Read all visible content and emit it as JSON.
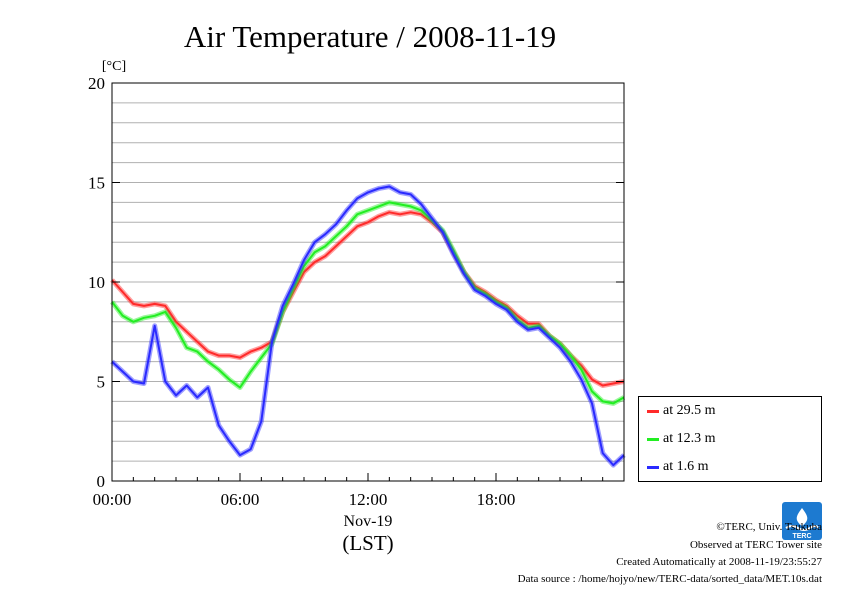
{
  "colors": {
    "s29": "#ff2a2a",
    "s12": "#22ee22",
    "s16": "#2a2aff",
    "grid": "#b0b0b0",
    "logo": "#1d7ad0"
  },
  "chart_data": {
    "type": "line",
    "title": "Air Temperature / 2008-11-19",
    "ylabel": "[°C]",
    "xlabel_date": "Nov-19",
    "xlabel_tz": "(LST)",
    "xlim": [
      0,
      24
    ],
    "ylim": [
      0,
      20
    ],
    "x_ticks": [
      0,
      6,
      12,
      18
    ],
    "x_tick_labels": [
      "00:00",
      "06:00",
      "12:00",
      "18:00"
    ],
    "y_ticks": [
      0,
      5,
      10,
      15,
      20
    ],
    "y_tick_labels": [
      "0",
      "5",
      "10",
      "15",
      "20"
    ],
    "grid": true,
    "legend_position": "bottom-right outside",
    "x_unit": "hour",
    "x": [
      0,
      0.5,
      1,
      1.5,
      2,
      2.5,
      3,
      3.5,
      4,
      4.5,
      5,
      5.5,
      6,
      6.5,
      7,
      7.5,
      8,
      8.5,
      9,
      9.5,
      10,
      10.5,
      11,
      11.5,
      12,
      12.5,
      13,
      13.5,
      14,
      14.5,
      15,
      15.5,
      16,
      16.5,
      17,
      17.5,
      18,
      18.5,
      19,
      19.5,
      20,
      20.5,
      21,
      21.5,
      22,
      22.5,
      23,
      23.5,
      24
    ],
    "series": [
      {
        "name": "at 29.5 m",
        "color_key": "s29",
        "values": [
          10.1,
          9.5,
          8.9,
          8.8,
          8.9,
          8.8,
          8.0,
          7.5,
          7.0,
          6.5,
          6.3,
          6.3,
          6.2,
          6.5,
          6.7,
          7.0,
          8.5,
          9.5,
          10.5,
          11.0,
          11.3,
          11.8,
          12.3,
          12.8,
          13.0,
          13.3,
          13.5,
          13.4,
          13.5,
          13.4,
          13.0,
          12.5,
          11.5,
          10.5,
          9.8,
          9.5,
          9.1,
          8.8,
          8.3,
          7.9,
          7.9,
          7.3,
          6.9,
          6.3,
          5.8,
          5.1,
          4.8,
          4.9,
          5.0
        ]
      },
      {
        "name": "at 12.3 m",
        "color_key": "s12",
        "values": [
          9.0,
          8.3,
          8.0,
          8.2,
          8.3,
          8.5,
          7.7,
          6.7,
          6.5,
          6.0,
          5.6,
          5.1,
          4.7,
          5.5,
          6.2,
          6.9,
          8.5,
          9.7,
          10.8,
          11.5,
          11.8,
          12.3,
          12.8,
          13.4,
          13.6,
          13.8,
          14.0,
          13.9,
          13.8,
          13.6,
          13.1,
          12.6,
          11.6,
          10.5,
          9.7,
          9.4,
          9.0,
          8.7,
          8.1,
          7.7,
          7.8,
          7.3,
          6.9,
          6.3,
          5.6,
          4.5,
          4.0,
          3.9,
          4.2
        ]
      },
      {
        "name": "at 1.6 m",
        "color_key": "s16",
        "values": [
          6.0,
          5.5,
          5.0,
          4.9,
          7.8,
          5.0,
          4.3,
          4.8,
          4.2,
          4.7,
          2.8,
          2.0,
          1.3,
          1.6,
          3.0,
          7.0,
          8.8,
          9.9,
          11.1,
          12.0,
          12.4,
          12.9,
          13.6,
          14.2,
          14.5,
          14.7,
          14.8,
          14.5,
          14.4,
          13.9,
          13.2,
          12.5,
          11.4,
          10.4,
          9.6,
          9.3,
          8.9,
          8.6,
          8.0,
          7.6,
          7.7,
          7.2,
          6.7,
          6.0,
          5.1,
          3.9,
          1.4,
          0.8,
          1.3
        ]
      }
    ]
  },
  "credits": {
    "copyright": "©TERC, Univ. Tsukuba",
    "observed": "Observed at TERC Tower site",
    "created": "Created Automatically at 2008-11-19/23:55:27",
    "source": "Data source : /home/hojyo/new/TERC-data/sorted_data/MET.10s.dat",
    "logo_text": "TERC"
  }
}
